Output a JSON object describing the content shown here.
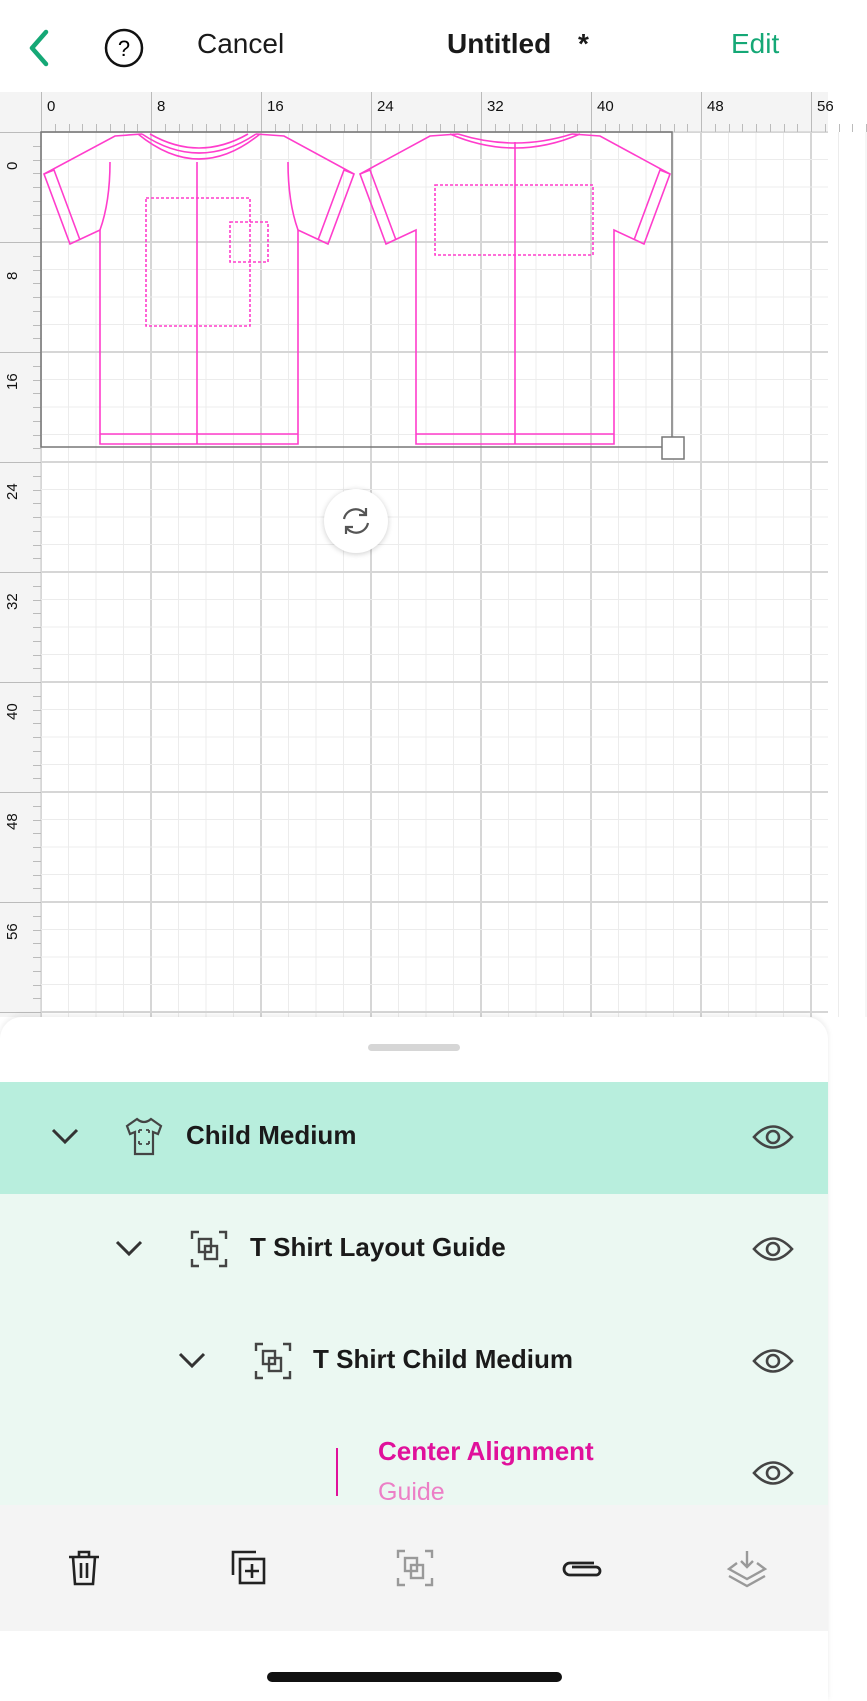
{
  "header": {
    "back_icon": "chevron-left-icon",
    "help_icon": "question-circle-icon",
    "cancel_label": "Cancel",
    "title": "Untitled",
    "modified_marker": "*",
    "edit_label": "Edit",
    "accent": "#15a876"
  },
  "rulers": {
    "horizontal": [
      "0",
      "8",
      "16",
      "24",
      "32",
      "40",
      "48",
      "56"
    ],
    "vertical": [
      "0",
      "8",
      "16",
      "24",
      "32",
      "40",
      "48",
      "56"
    ]
  },
  "canvas": {
    "guide_color": "#ff3dcc",
    "rotate_icon": "rotate-icon"
  },
  "layers": [
    {
      "label": "Child Medium",
      "icon": "tshirt-icon",
      "selected": true
    },
    {
      "label": "T Shirt Layout Guide",
      "icon": "group-icon"
    },
    {
      "label": "T Shirt Child Medium",
      "icon": "group-icon"
    },
    {
      "label": "Center Alignment",
      "sublabel": "Guide",
      "color": "#e0119b"
    }
  ],
  "toolbar": [
    "trash-icon",
    "duplicate-icon",
    "group-icon",
    "attach-icon",
    "flatten-icon"
  ]
}
